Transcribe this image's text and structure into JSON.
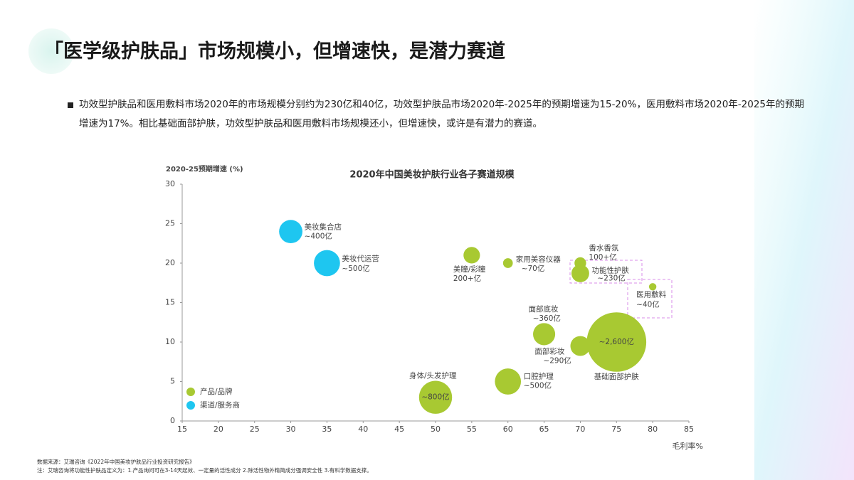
{
  "header": {
    "title": "「医学级护肤品」市场规模小，但增速快，是潜力赛道",
    "bullet": "功效型护肤品和医用敷料市场2020年的市场规模分别约为230亿和40亿，功效型护肤品市场2020年-2025年的预期增速为15-20%，医用敷料市场2020年-2025年的预期增速为17%。相比基础面部护肤，功效型护肤品和医用敷料市场规模还小，但增速快，或许是有潜力的赛道。"
  },
  "chart_data": {
    "type": "bubble",
    "title": "2020年中国美妆护肤行业各子赛道规模",
    "x_label": "毛利率%",
    "y_label": "2020-25预期增速 (%)",
    "xlim": [
      15,
      85
    ],
    "xticks": [
      15,
      20,
      25,
      30,
      35,
      40,
      45,
      50,
      55,
      60,
      65,
      70,
      75,
      80,
      85
    ],
    "ylim": [
      0,
      30
    ],
    "yticks": [
      0,
      5,
      10,
      15,
      20,
      25,
      30
    ],
    "legend": "bottom-left",
    "series": [
      {
        "name": "产品/品牌",
        "color": "#a8c932",
        "labels": [
          "美瞳/彩瞳",
          "家用美容仪器",
          "香水香氛",
          "功能性护肤",
          "医用敷料",
          "面部底妆",
          "面部彩妆",
          "基础面部护肤",
          "口腔护理",
          "身体/头发护理"
        ],
        "x": [
          55,
          60,
          70,
          70,
          80,
          65,
          70,
          75,
          60,
          50
        ],
        "values": [
          21,
          20,
          20,
          18.7,
          17,
          11,
          9.5,
          10,
          5,
          3
        ],
        "sizes": [
          200,
          70,
          100,
          230,
          40,
          360,
          290,
          2600,
          500,
          800
        ],
        "value_labels": [
          "200+亿",
          "~70亿",
          "100+亿",
          "~230亿",
          "~40亿",
          "~360亿",
          "~290亿",
          "~2,600亿",
          "~500亿",
          "~800亿"
        ]
      },
      {
        "name": "渠道/服务商",
        "color": "#1ec6f0",
        "labels": [
          "美妆集合店",
          "美妆代运营"
        ],
        "x": [
          30,
          35
        ],
        "values": [
          24,
          20
        ],
        "sizes": [
          400,
          500
        ],
        "value_labels": [
          "~400亿",
          "~500亿"
        ]
      }
    ]
  },
  "footer": {
    "source": "数据来源：艾瑞咨询《2022年中国美妆护肤品行业投资研究报告》",
    "note": "注：艾瑞咨询将功能性护肤品定义为：1.产品询问可在3-14天起效、一定量的活性成分 2.除活性物外精简成分强调安全性 3.有科学数据支撑。"
  }
}
